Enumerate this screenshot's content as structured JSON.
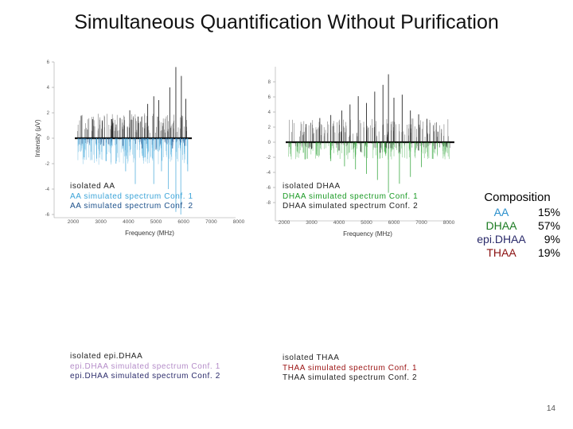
{
  "slide": {
    "title": "Simultaneous Quantification Without Purification",
    "page_number": "14"
  },
  "colors": {
    "black": "#111111",
    "aa_conf1": "#3aa3d8",
    "aa_conf2": "#1a4f8a",
    "dhaa_conf1": "#1a9a24",
    "dhaa_conf2": "#111111",
    "epidhaa_conf1": "#b48cc8",
    "epidhaa_conf2": "#2a2a6a",
    "thaa_conf1": "#9a1010",
    "thaa_conf2": "#222222"
  },
  "legends": {
    "aa": [
      "isolated AA",
      "AA simulated spectrum Conf. 1",
      "AA simulated spectrum Conf. 2"
    ],
    "dhaa": [
      "isolated DHAA",
      "DHAA simulated spectrum Conf. 1",
      "DHAA simulated spectrum Conf. 2"
    ],
    "epidhaa": [
      "isolated epi.DHAA",
      "epi.DHAA simulated spectrum Conf. 1",
      "epi.DHAA simulated spectrum Conf. 2"
    ],
    "thaa": [
      "isolated THAA",
      "THAA simulated spectrum Conf. 1",
      "THAA simulated spectrum Conf. 2"
    ]
  },
  "composition": {
    "title": "Composition",
    "rows": [
      {
        "name": "AA",
        "value": "15%",
        "color": "#2a8fcc"
      },
      {
        "name": "DHAA",
        "value": "57%",
        "color": "#1a7a20"
      },
      {
        "name": "epi.DHAA",
        "value": "9%",
        "color": "#2a2a6a"
      },
      {
        "name": "THAA",
        "value": "19%",
        "color": "#8a1010"
      }
    ]
  },
  "chart_data": [
    {
      "type": "line",
      "name": "AA spectra",
      "xlabel": "Frequency (MHz)",
      "ylabel": "Intensity (μV)",
      "xlim": [
        2000,
        6300
      ],
      "ylim": [
        -6,
        6
      ],
      "xticks": [
        "2000",
        "3000",
        "4000",
        "5000",
        "6000",
        "7000",
        "8000"
      ],
      "yticks": [
        "6",
        "4",
        "2",
        "0",
        "-2",
        "-4",
        "-6"
      ],
      "series": [
        {
          "role": "isolated",
          "color": "#111111",
          "x": [
            2700,
            3050,
            3400,
            3700,
            4050,
            4350,
            4700,
            4920,
            5100,
            5260,
            5500,
            5720,
            5920,
            6080
          ],
          "y": [
            1.5,
            1.4,
            1.5,
            1.6,
            2.2,
            1.7,
            2.7,
            3.3,
            3.0,
            1.2,
            4.0,
            5.6,
            4.9,
            3.1
          ]
        },
        {
          "role": "conf1",
          "color": "#3aa3d8",
          "x": [
            2400,
            2850,
            3200,
            3550,
            3900,
            4250,
            4600,
            4920,
            5200,
            5450,
            5720,
            5900,
            6150
          ],
          "y": [
            -1.5,
            -1.6,
            -1.8,
            -2.0,
            -2.6,
            -3.6,
            -1.5,
            -3.6,
            -2.6,
            -4.0,
            -5.8,
            -6.0,
            -2.6
          ]
        },
        {
          "role": "conf2",
          "color": "#1a4f8a",
          "x": [
            3100,
            3800,
            4500,
            5000,
            5600,
            6050
          ],
          "y": [
            -0.6,
            -0.6,
            -0.8,
            -0.9,
            -0.8,
            -0.6
          ]
        }
      ]
    },
    {
      "type": "line",
      "name": "DHAA spectra",
      "xlabel": "Frequency (MHz)",
      "ylabel": "",
      "xlim": [
        2000,
        8200
      ],
      "ylim": [
        -10,
        10
      ],
      "xticks": [
        "2000",
        "3000",
        "4000",
        "5000",
        "6000",
        "7000",
        "8000"
      ],
      "yticks": [
        "8",
        "6",
        "4",
        "2",
        "0",
        "-2",
        "-4",
        "-6",
        "-8"
      ],
      "series": [
        {
          "role": "isolated",
          "color": "#111111",
          "x": [
            2800,
            3300,
            3700,
            4100,
            4400,
            4700,
            5000,
            5300,
            5600,
            5800,
            6000,
            6300,
            6600,
            6900,
            7200,
            7600
          ],
          "y": [
            2.4,
            3.2,
            3.6,
            4.2,
            5.0,
            6.1,
            5.2,
            6.7,
            7.6,
            9.0,
            5.9,
            6.3,
            4.2,
            3.7,
            3.1,
            1.4
          ]
        },
        {
          "role": "conf1",
          "color": "#1a9a24",
          "x": [
            2700,
            3200,
            3700,
            4200,
            4600,
            5000,
            5400,
            5800,
            6200,
            6600,
            7000,
            7400
          ],
          "y": [
            -1.4,
            -1.8,
            -2.5,
            -3.2,
            -3.6,
            -4.2,
            -5.0,
            -6.7,
            -5.5,
            -4.6,
            -3.3,
            -2.2
          ]
        },
        {
          "role": "conf2",
          "color": "#111111",
          "x": [
            3000,
            4000,
            4800,
            5500,
            6200,
            6900,
            7500
          ],
          "y": [
            -0.9,
            -1.1,
            -1.3,
            -1.4,
            -1.3,
            -1.1,
            -0.9
          ]
        }
      ]
    }
  ]
}
